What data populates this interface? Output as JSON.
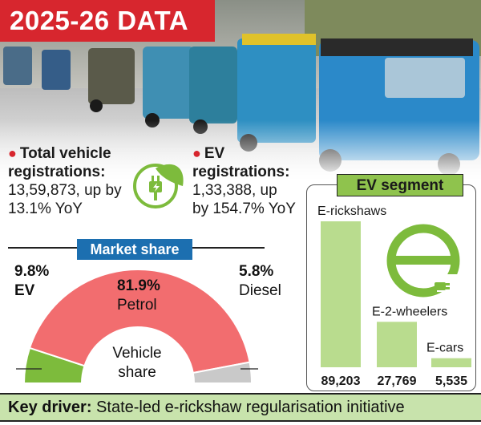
{
  "title": "2025-26 DATA",
  "stats": {
    "total": {
      "head1": "Total vehicle",
      "head2": "registrations:",
      "body1": "13,59,873, up by",
      "body2": "13.1% YoY"
    },
    "ev": {
      "head1": "EV",
      "head2": "registrations:",
      "body1": "1,33,388, up",
      "body2": "by 154.7% YoY"
    }
  },
  "colors": {
    "red": "#d7262e",
    "blue": "#1c6fb0",
    "green": "#7dbb3c",
    "light_green": "#b9dc8e",
    "salmon": "#f26d6f",
    "gray": "#c9c9c9"
  },
  "icons": [
    "ev-plug-icon",
    "ev-e-logo-icon"
  ],
  "chart_data": [
    {
      "type": "pie",
      "title": "Market share",
      "center_label_1": "Vehicle",
      "center_label_2": "share",
      "slices": [
        {
          "label": "EV",
          "value": 9.8,
          "display": "9.8%"
        },
        {
          "label": "Petrol",
          "value": 81.9,
          "display": "81.9%"
        },
        {
          "label": "Diesel",
          "value": 5.8,
          "display": "5.8%"
        }
      ]
    },
    {
      "type": "bar",
      "title": "EV segment",
      "categories": [
        "E-rickshaws",
        "E-2-wheelers",
        "E-cars"
      ],
      "values": [
        89203,
        27769,
        5535
      ],
      "value_labels": [
        "89,203",
        "27,769",
        "5,535"
      ]
    }
  ],
  "footer": {
    "label": "Key driver:",
    "text": " State-led e-rickshaw regularisation initiative"
  }
}
